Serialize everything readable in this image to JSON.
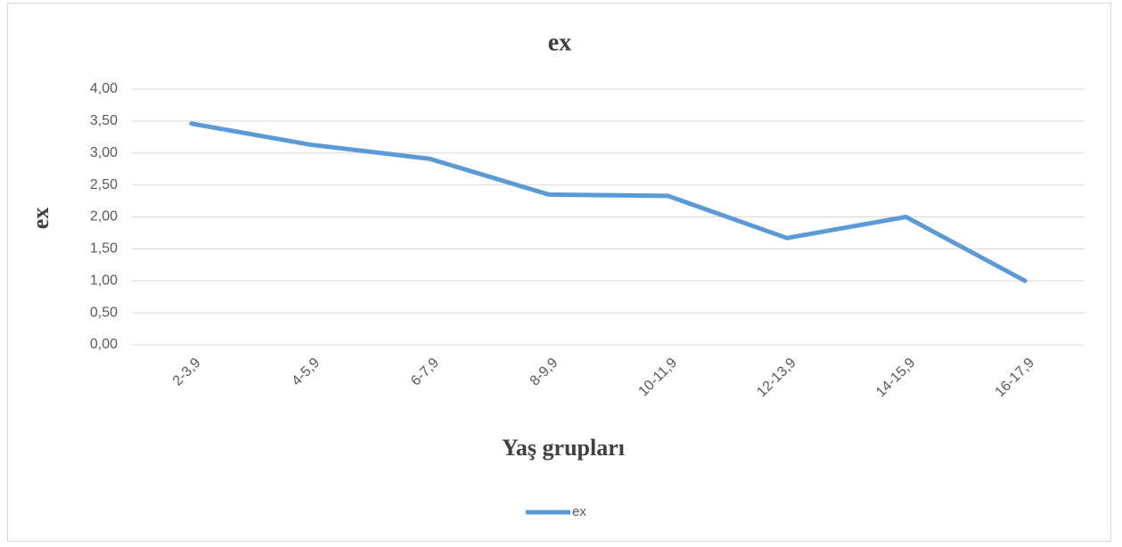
{
  "chart_data": {
    "type": "line",
    "title": "ex",
    "x_label": "Yaş grupları",
    "y_label": "ex",
    "categories": [
      "2-3,9",
      "4-5,9",
      "6-7,9",
      "8-9,9",
      "10-11,9",
      "12-13,9",
      "14-15,9",
      "16-17,9"
    ],
    "series": [
      {
        "name": "ex",
        "color": "#5b9bd5",
        "values": [
          3.46,
          3.13,
          2.91,
          2.35,
          2.33,
          1.67,
          2.0,
          1.0
        ]
      }
    ],
    "ylim": [
      0,
      4
    ],
    "yticks": [
      {
        "value": 0,
        "label": "0,00"
      },
      {
        "value": 0.5,
        "label": "0,50"
      },
      {
        "value": 1,
        "label": "1,00"
      },
      {
        "value": 1.5,
        "label": "1,50"
      },
      {
        "value": 2,
        "label": "2,00"
      },
      {
        "value": 2.5,
        "label": "2,50"
      },
      {
        "value": 3,
        "label": "3,00"
      },
      {
        "value": 3.5,
        "label": "3,50"
      },
      {
        "value": 4,
        "label": "4,00"
      }
    ],
    "grid": true,
    "legend": "bottom"
  }
}
